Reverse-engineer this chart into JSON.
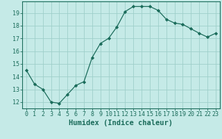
{
  "x": [
    0,
    1,
    2,
    3,
    4,
    5,
    6,
    7,
    8,
    9,
    10,
    11,
    12,
    13,
    14,
    15,
    16,
    17,
    18,
    19,
    20,
    21,
    22,
    23
  ],
  "y": [
    14.5,
    13.4,
    13.0,
    12.0,
    11.9,
    12.6,
    13.3,
    13.6,
    15.5,
    16.6,
    17.0,
    17.9,
    19.1,
    19.5,
    19.5,
    19.5,
    19.2,
    18.5,
    18.2,
    18.1,
    17.75,
    17.4,
    17.1,
    17.4
  ],
  "line_color": "#1a6b5a",
  "marker": "D",
  "markersize": 2.2,
  "background_color": "#c5eae7",
  "grid_color": "#9ecfca",
  "xlabel": "Humidex (Indice chaleur)",
  "xlabel_fontsize": 7.5,
  "tick_fontsize": 6,
  "ylim": [
    11.5,
    19.9
  ],
  "xlim": [
    -0.5,
    23.5
  ],
  "yticks": [
    12,
    13,
    14,
    15,
    16,
    17,
    18,
    19
  ],
  "xticks": [
    0,
    1,
    2,
    3,
    4,
    5,
    6,
    7,
    8,
    9,
    10,
    11,
    12,
    13,
    14,
    15,
    16,
    17,
    18,
    19,
    20,
    21,
    22,
    23
  ]
}
